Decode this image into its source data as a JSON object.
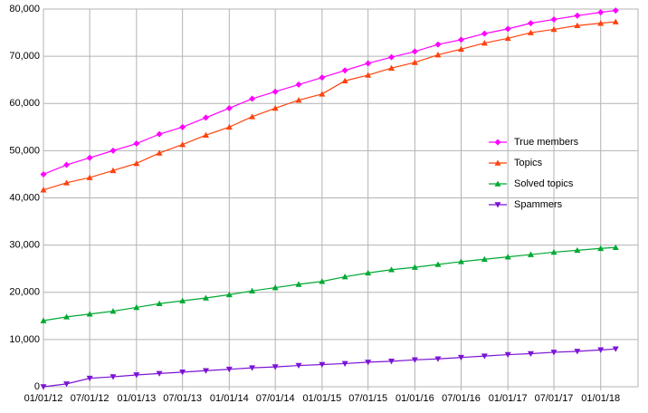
{
  "chart_data": {
    "type": "line",
    "x": [
      "2012-01-01",
      "2012-04-01",
      "2012-07-01",
      "2012-10-01",
      "2013-01-01",
      "2013-04-01",
      "2013-07-01",
      "2013-10-01",
      "2014-01-01",
      "2014-04-01",
      "2014-07-01",
      "2014-10-01",
      "2015-01-01",
      "2015-04-01",
      "2015-07-01",
      "2015-10-01",
      "2016-01-01",
      "2016-04-01",
      "2016-07-01",
      "2016-10-01",
      "2017-01-01",
      "2017-04-01",
      "2017-07-01",
      "2017-10-01",
      "2018-01-01",
      "2018-03-01"
    ],
    "series": [
      {
        "name": "True members",
        "color": "#ff00ff",
        "marker": "diamond",
        "values": [
          45000,
          47000,
          48500,
          50000,
          51500,
          53500,
          55000,
          57000,
          59000,
          61000,
          62500,
          64000,
          65500,
          67000,
          68500,
          69800,
          71000,
          72500,
          73500,
          74800,
          75800,
          77000,
          77800,
          78600,
          79300,
          79700
        ]
      },
      {
        "name": "Topics",
        "color": "#ff420e",
        "marker": "triangle-up",
        "values": [
          41700,
          43200,
          44300,
          45800,
          47300,
          49500,
          51300,
          53300,
          55000,
          57200,
          59000,
          60700,
          62000,
          64800,
          66000,
          67500,
          68700,
          70300,
          71500,
          72800,
          73800,
          75000,
          75700,
          76500,
          77000,
          77300
        ]
      },
      {
        "name": "Solved topics",
        "color": "#00a933",
        "marker": "triangle-up",
        "values": [
          14000,
          14800,
          15400,
          16000,
          16800,
          17600,
          18200,
          18800,
          19500,
          20300,
          21000,
          21700,
          22300,
          23300,
          24100,
          24800,
          25300,
          25900,
          26500,
          27000,
          27500,
          28000,
          28500,
          28900,
          29300,
          29500
        ]
      },
      {
        "name": "Spammers",
        "color": "#7b14d4",
        "marker": "triangle-down",
        "values": [
          0,
          600,
          1800,
          2100,
          2500,
          2800,
          3100,
          3400,
          3700,
          4000,
          4200,
          4500,
          4700,
          4900,
          5200,
          5400,
          5700,
          5900,
          6200,
          6500,
          6800,
          7000,
          7300,
          7500,
          7800,
          8000
        ]
      }
    ],
    "xlim": [
      "2012-01-01",
      "2018-05-28"
    ],
    "xticks": [
      {
        "value": "2012-01-01",
        "label": "01/01/12"
      },
      {
        "value": "2012-07-01",
        "label": "07/01/12"
      },
      {
        "value": "2013-01-01",
        "label": "01/01/13"
      },
      {
        "value": "2013-07-01",
        "label": "07/01/13"
      },
      {
        "value": "2014-01-01",
        "label": "01/01/14"
      },
      {
        "value": "2014-07-01",
        "label": "07/01/14"
      },
      {
        "value": "2015-01-01",
        "label": "01/01/15"
      },
      {
        "value": "2015-07-01",
        "label": "07/01/15"
      },
      {
        "value": "2016-01-01",
        "label": "01/01/16"
      },
      {
        "value": "2016-07-01",
        "label": "07/01/16"
      },
      {
        "value": "2017-01-01",
        "label": "01/01/17"
      },
      {
        "value": "2017-07-01",
        "label": "07/01/17"
      },
      {
        "value": "2018-01-01",
        "label": "01/01/18"
      }
    ],
    "ylim": [
      0,
      80000
    ],
    "yticks": [
      0,
      {
        "value": 10000,
        "label": "10,000"
      },
      {
        "value": 20000,
        "label": "20,000"
      },
      {
        "value": 30000,
        "label": "30,000"
      },
      {
        "value": 40000,
        "label": "40,000"
      },
      {
        "value": 50000,
        "label": "50,000"
      },
      {
        "value": 60000,
        "label": "60,000"
      },
      {
        "value": 70000,
        "label": "70,000"
      },
      {
        "value": 80000,
        "label": "80,000"
      }
    ],
    "grid": true
  }
}
